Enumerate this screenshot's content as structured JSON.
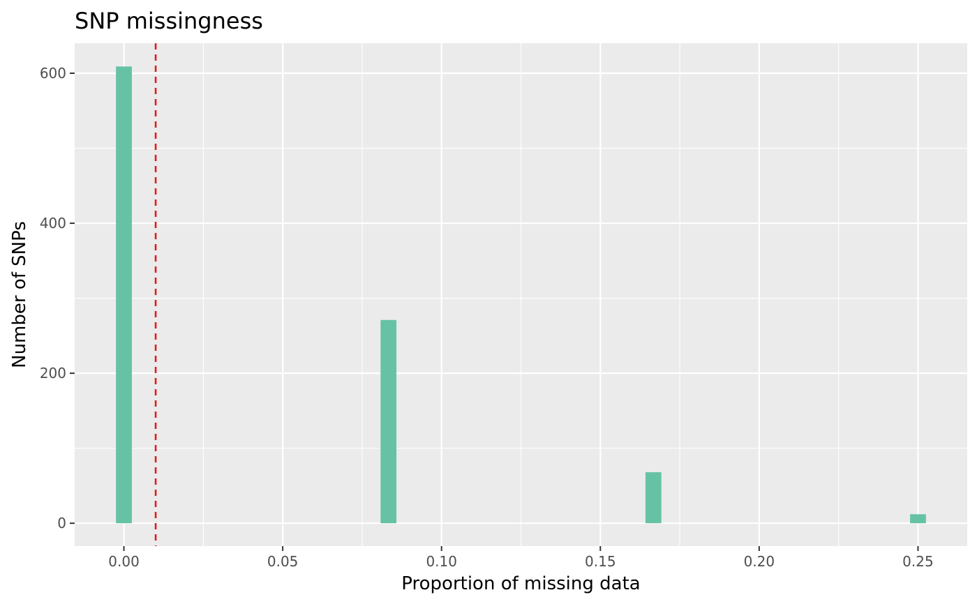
{
  "chart_data": {
    "type": "bar",
    "title": "SNP missingness",
    "xlabel": "Proportion of missing data",
    "ylabel": "Number of SNPs",
    "x": [
      0.0,
      0.0833,
      0.1667,
      0.25
    ],
    "values": [
      609,
      271,
      68,
      12
    ],
    "bin_width": 0.005,
    "xlim": [
      -0.0155,
      0.2655
    ],
    "ylim": [
      -30.5,
      640
    ],
    "x_ticks": [
      0.0,
      0.05,
      0.1,
      0.15,
      0.2,
      0.25
    ],
    "x_tick_labels": [
      "0.00",
      "0.05",
      "0.10",
      "0.15",
      "0.20",
      "0.25"
    ],
    "y_ticks": [
      0,
      200,
      400,
      600
    ],
    "y_tick_labels": [
      "0",
      "200",
      "400",
      "600"
    ],
    "threshold_line": {
      "x": 0.01,
      "style": "dashed"
    },
    "grid": true,
    "colors": {
      "bar": "#66c2a5",
      "panel": "#ebebeb",
      "grid": "#ffffff",
      "threshold": "#e41a1c",
      "tick_label": "#4d4d4d"
    }
  }
}
